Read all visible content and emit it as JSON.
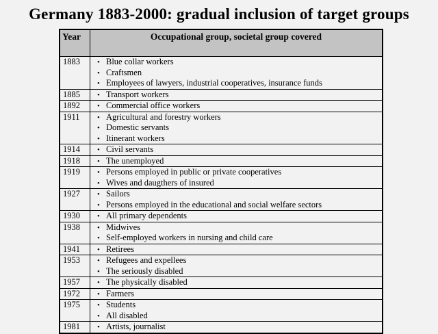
{
  "title": "Germany 1883-2000: gradual inclusion of target groups",
  "table": {
    "columns": [
      "Year",
      "Occupational group, societal group covered"
    ],
    "bullet_glyph": "•",
    "rows": [
      {
        "year": "1883",
        "items": [
          "Blue collar workers",
          "Craftsmen",
          "Employees of lawyers, industrial cooperatives, insurance funds"
        ]
      },
      {
        "year": "1885",
        "items": [
          "Transport workers"
        ]
      },
      {
        "year": "1892",
        "items": [
          "Commercial office workers"
        ]
      },
      {
        "year": "1911",
        "items": [
          "Agricultural and forestry workers",
          "Domestic servants",
          "Itinerant workers"
        ]
      },
      {
        "year": "1914",
        "items": [
          "Civil servants"
        ]
      },
      {
        "year": "1918",
        "items": [
          "The unemployed"
        ]
      },
      {
        "year": "1919",
        "items": [
          "Persons employed in public or private cooperatives",
          "Wives and daugthers of insured"
        ]
      },
      {
        "year": "1927",
        "items": [
          "Sailors",
          "Persons employed in the educational and social welfare sectors"
        ]
      },
      {
        "year": "1930",
        "items": [
          "All primary dependents"
        ]
      },
      {
        "year": "1938",
        "items": [
          "Midwives",
          "Self-employed workers in nursing and child care"
        ]
      },
      {
        "year": "1941",
        "items": [
          "Retirees"
        ]
      },
      {
        "year": "1953",
        "items": [
          "Refugees and expellees",
          "The seriously disabled"
        ]
      },
      {
        "year": "1957",
        "items": [
          "The physically disabled"
        ]
      },
      {
        "year": "1972",
        "items": [
          "Farmers"
        ]
      },
      {
        "year": "1975",
        "items": [
          "Students",
          "All disabled"
        ]
      },
      {
        "year": "1981",
        "items": [
          "Artists, journalist"
        ]
      }
    ]
  },
  "colors": {
    "page_background": "#f2f2f2",
    "header_background": "#c3c3c3",
    "border": "#000000",
    "text": "#000000"
  }
}
